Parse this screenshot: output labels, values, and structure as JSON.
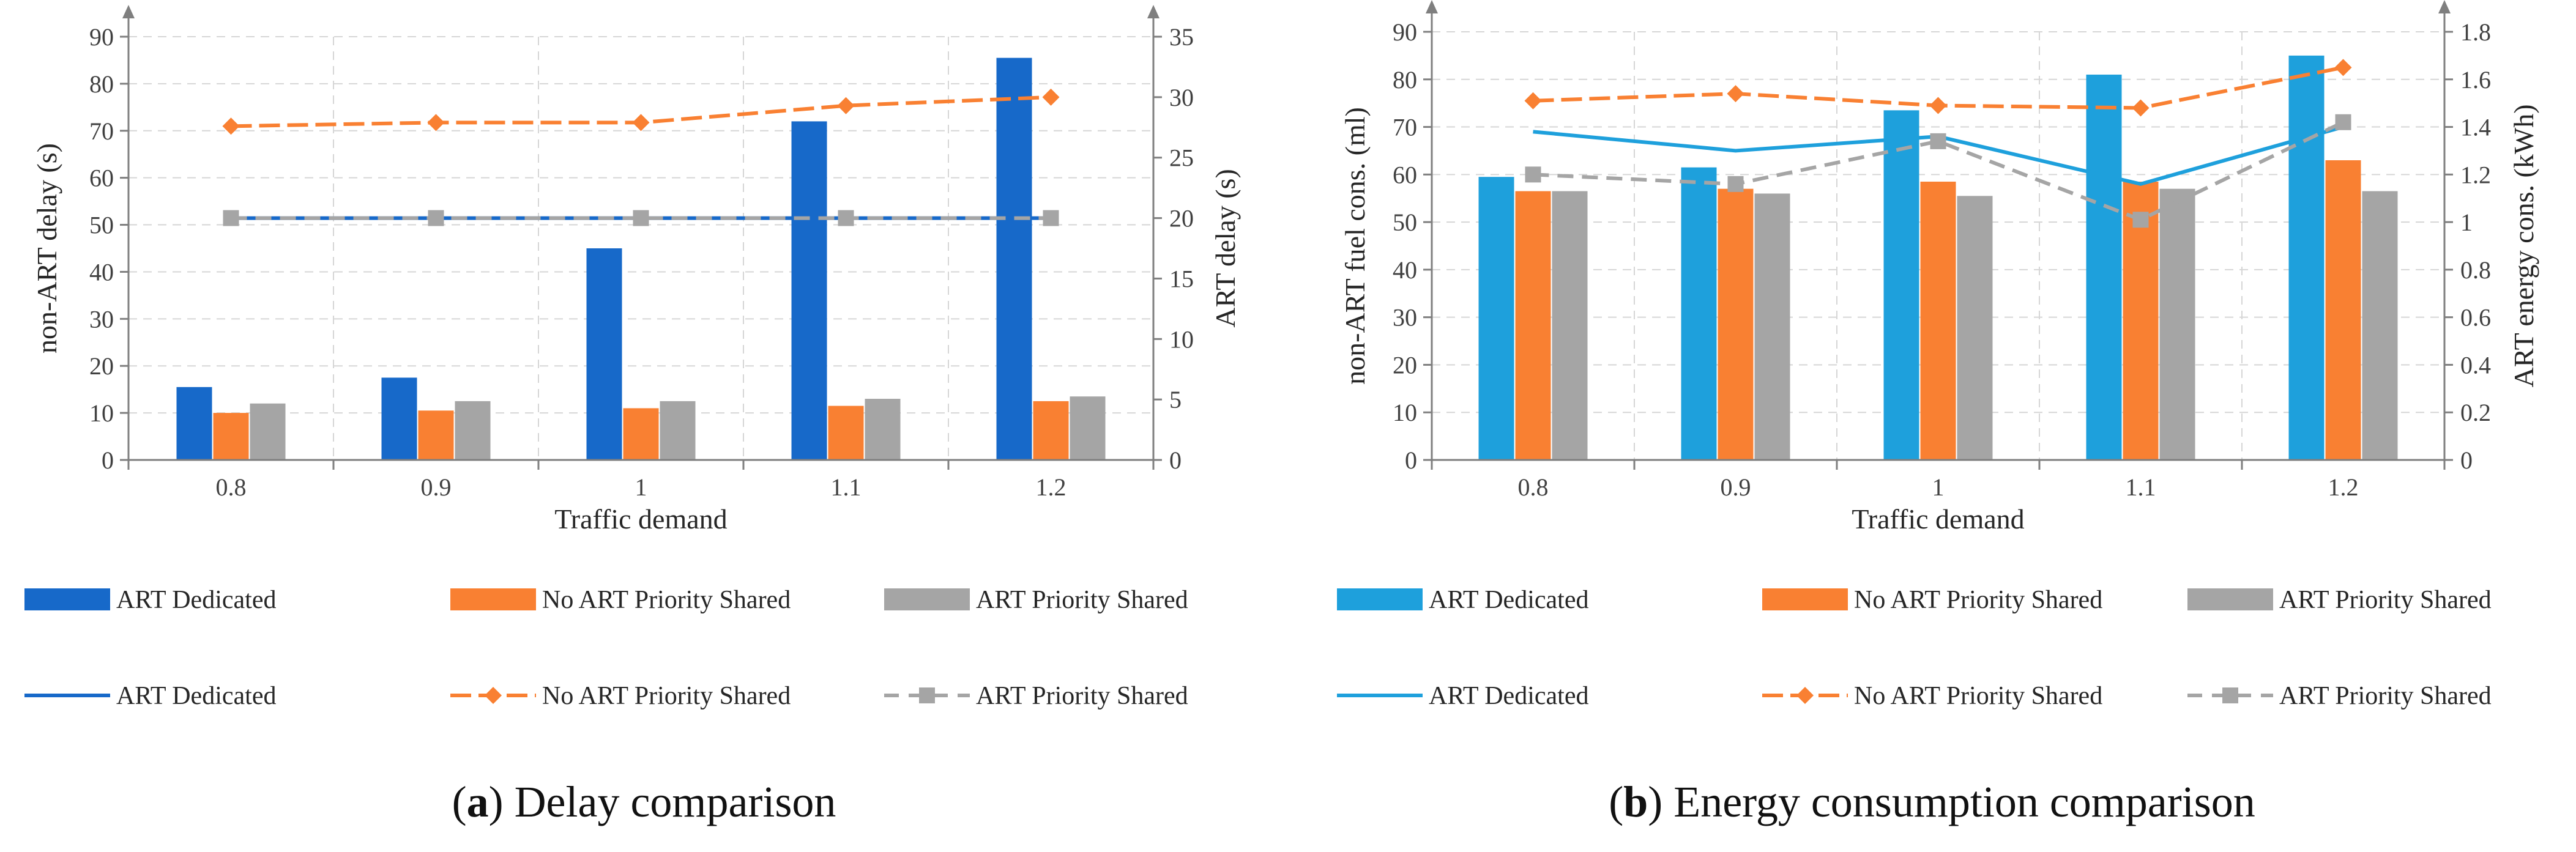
{
  "chart_data": [
    {
      "type": "bar",
      "subtype": "bar+line dual-axis",
      "panel_label": "a",
      "caption_text": "Delay comparison",
      "categories": [
        "0.8",
        "0.9",
        "1",
        "1.1",
        "1.2"
      ],
      "xlabel": "Traffic demand",
      "ylabel": "non-ART delay (s)",
      "y2label": "ART delay (s)",
      "ylim": [
        0,
        90
      ],
      "y2lim": [
        0,
        35
      ],
      "yticks": [
        "0",
        "10",
        "20",
        "30",
        "40",
        "50",
        "60",
        "70",
        "80",
        "90"
      ],
      "y2ticks": [
        "0",
        "5",
        "10",
        "15",
        "20",
        "25",
        "30",
        "35"
      ],
      "colors": {
        "dedicated": "#1769c9",
        "no_priority": "#f98032",
        "priority": "#a5a5a5",
        "grid": "#d6d6d6",
        "axis": "#7f7f7f"
      },
      "bar_series": [
        {
          "name": "ART Dedicated",
          "values": [
            15.5,
            17.5,
            45,
            72,
            85.5
          ]
        },
        {
          "name": "No ART Priority Shared",
          "values": [
            10,
            10.5,
            11,
            11.5,
            12.5
          ]
        },
        {
          "name": "ART Priority Shared",
          "values": [
            12,
            12.5,
            12.5,
            13,
            13.5
          ]
        }
      ],
      "line_series": [
        {
          "name": "ART Dedicated",
          "values": [
            20,
            20,
            20,
            20,
            20
          ],
          "marker": "none",
          "dash": "solid"
        },
        {
          "name": "No ART Priority Shared",
          "values": [
            27.6,
            27.9,
            27.9,
            29.3,
            30
          ],
          "marker": "diamond",
          "dash": "dashed"
        },
        {
          "name": "ART Priority Shared",
          "values": [
            20,
            20,
            20,
            20,
            20
          ],
          "marker": "square",
          "dash": "dashed"
        }
      ],
      "legend": {
        "bars": [
          "ART Dedicated",
          "No ART Priority Shared",
          "ART Priority Shared"
        ],
        "lines": [
          "ART Dedicated",
          "No ART Priority Shared",
          "ART Priority Shared"
        ],
        "placement": "bottom"
      }
    },
    {
      "type": "bar",
      "subtype": "bar+line dual-axis",
      "panel_label": "b",
      "caption_text": "Energy consumption comparison",
      "categories": [
        "0.8",
        "0.9",
        "1",
        "1.1",
        "1.2"
      ],
      "xlabel": "Traffic demand",
      "ylabel": "non-ART fuel cons. (ml)",
      "y2label": "ART energy cons. (kWh)",
      "ylim": [
        0,
        90
      ],
      "y2lim": [
        0,
        1.8
      ],
      "yticks": [
        "0",
        "10",
        "20",
        "30",
        "40",
        "50",
        "60",
        "70",
        "80",
        "90"
      ],
      "y2ticks": [
        "0",
        "0.2",
        "0.4",
        "0.6",
        "0.8",
        "1",
        "1.2",
        "1.4",
        "1.6",
        "1.8"
      ],
      "colors": {
        "dedicated": "#1ea0dc",
        "no_priority": "#f98032",
        "priority": "#a5a5a5",
        "grid": "#d6d6d6",
        "axis": "#7f7f7f"
      },
      "bar_series": [
        {
          "name": "ART Dedicated",
          "values": [
            59.5,
            61.5,
            73.5,
            81,
            85
          ]
        },
        {
          "name": "No ART Priority Shared",
          "values": [
            56.5,
            57,
            58.5,
            58.5,
            63
          ]
        },
        {
          "name": "ART Priority Shared",
          "values": [
            56.5,
            56,
            55.5,
            57,
            56.5
          ]
        }
      ],
      "line_series": [
        {
          "name": "ART Dedicated",
          "values": [
            1.38,
            1.3,
            1.36,
            1.16,
            1.4
          ],
          "marker": "none",
          "dash": "solid"
        },
        {
          "name": "No ART Priority Shared",
          "values": [
            1.51,
            1.54,
            1.49,
            1.48,
            1.65
          ],
          "marker": "diamond",
          "dash": "dashed"
        },
        {
          "name": "ART Priority Shared",
          "values": [
            1.2,
            1.16,
            1.34,
            1.01,
            1.42
          ],
          "marker": "square",
          "dash": "dashed"
        }
      ],
      "legend": {
        "bars": [
          "ART Dedicated",
          "No ART Priority Shared",
          "ART Priority Shared"
        ],
        "lines": [
          "ART Dedicated",
          "No ART Priority Shared",
          "ART Priority Shared"
        ],
        "placement": "bottom"
      }
    }
  ]
}
